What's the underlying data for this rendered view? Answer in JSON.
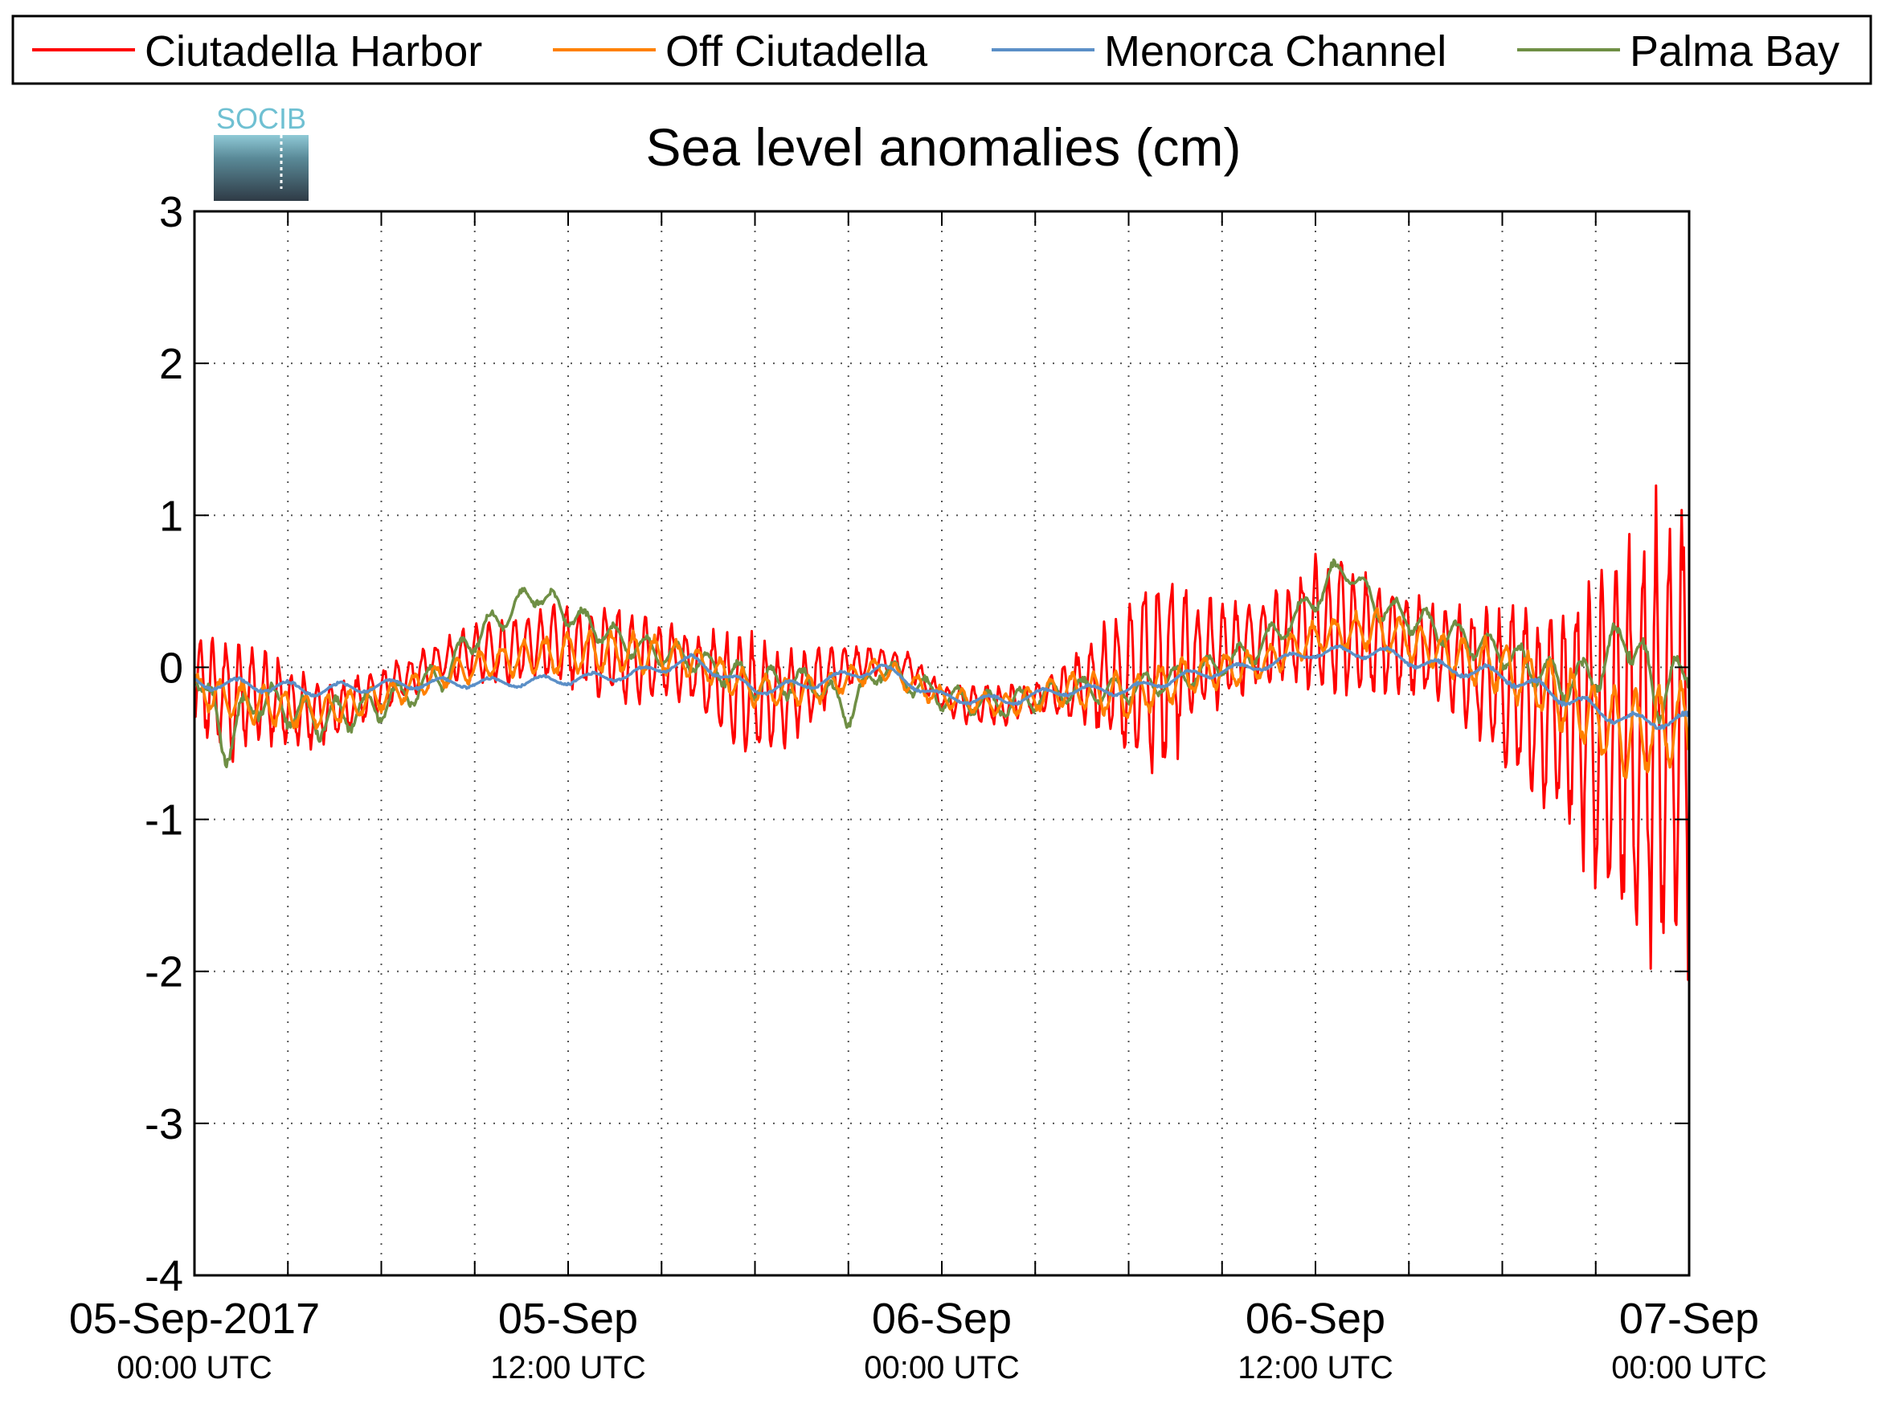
{
  "chart_data": {
    "type": "line",
    "title": "Sea level anomalies (cm)",
    "xlabel": "",
    "ylabel": "",
    "ylim": [
      -4,
      3
    ],
    "y_ticks": [
      "3",
      "2",
      "1",
      "0",
      "-1",
      "-2",
      "-3",
      "-4"
    ],
    "x_range_hours": [
      0,
      48
    ],
    "x_ticks": [
      {
        "hour": 0,
        "date": "05-Sep-2017",
        "time": "00:00 UTC"
      },
      {
        "hour": 12,
        "date": "05-Sep",
        "time": "12:00 UTC"
      },
      {
        "hour": 24,
        "date": "06-Sep",
        "time": "00:00 UTC"
      },
      {
        "hour": 36,
        "date": "06-Sep",
        "time": "12:00 UTC"
      },
      {
        "hour": 48,
        "date": "07-Sep",
        "time": "00:00 UTC"
      }
    ],
    "grid": true,
    "legend_position": "top",
    "series": [
      {
        "name": "Ciutadella Harbor",
        "color": "#ff0000",
        "hours": [
          0,
          1,
          2,
          3,
          4,
          5,
          6,
          7,
          8,
          9,
          10,
          11,
          12,
          13,
          14,
          15,
          16,
          17,
          18,
          19,
          20,
          21,
          22,
          23,
          24,
          25,
          26,
          27,
          28,
          29,
          30,
          31,
          32,
          33,
          34,
          35,
          36,
          37,
          38,
          39,
          40,
          41,
          42,
          43,
          44,
          45,
          46,
          47,
          48
        ],
        "center": [
          -0.1,
          -0.2,
          -0.2,
          -0.25,
          -0.3,
          -0.25,
          -0.15,
          -0.05,
          0.05,
          0.1,
          0.1,
          0.15,
          0.15,
          0.1,
          0.05,
          0.05,
          0.0,
          -0.1,
          -0.2,
          -0.2,
          -0.1,
          0.0,
          0.05,
          0.0,
          -0.2,
          -0.25,
          -0.25,
          -0.2,
          -0.15,
          -0.1,
          -0.05,
          0.0,
          0.05,
          0.1,
          0.15,
          0.2,
          0.25,
          0.25,
          0.2,
          0.15,
          0.1,
          0.0,
          -0.1,
          -0.25,
          -0.3,
          -0.4,
          -0.5,
          -0.45,
          -0.4
        ],
        "amplitude": [
          0.35,
          0.45,
          0.35,
          0.3,
          0.25,
          0.2,
          0.15,
          0.15,
          0.15,
          0.2,
          0.25,
          0.25,
          0.3,
          0.35,
          0.35,
          0.3,
          0.25,
          0.4,
          0.45,
          0.35,
          0.25,
          0.15,
          0.1,
          0.1,
          0.1,
          0.15,
          0.15,
          0.1,
          0.2,
          0.35,
          0.6,
          0.85,
          0.5,
          0.4,
          0.3,
          0.35,
          0.5,
          0.55,
          0.45,
          0.4,
          0.35,
          0.45,
          0.6,
          0.7,
          0.8,
          1.2,
          1.4,
          1.7,
          1.9
        ]
      },
      {
        "name": "Off Ciutadella",
        "color": "#ff8000",
        "hours": [
          0,
          2,
          4,
          6,
          8,
          10,
          12,
          14,
          16,
          18,
          20,
          22,
          24,
          26,
          28,
          30,
          32,
          34,
          36,
          38,
          40,
          42,
          44,
          46,
          48
        ],
        "center": [
          -0.15,
          -0.25,
          -0.3,
          -0.2,
          -0.05,
          0.05,
          0.1,
          0.1,
          0.05,
          -0.15,
          -0.15,
          0.0,
          -0.2,
          -0.25,
          -0.15,
          -0.2,
          -0.05,
          0.0,
          0.2,
          0.25,
          0.1,
          0.0,
          -0.2,
          -0.45,
          -0.35
        ],
        "amplitude": [
          0.12,
          0.15,
          0.12,
          0.1,
          0.1,
          0.12,
          0.15,
          0.15,
          0.12,
          0.12,
          0.1,
          0.08,
          0.08,
          0.08,
          0.12,
          0.18,
          0.15,
          0.12,
          0.12,
          0.15,
          0.15,
          0.2,
          0.25,
          0.3,
          0.3
        ]
      },
      {
        "name": "Menorca Channel",
        "color": "#5b8fc7",
        "hours": [
          0,
          2,
          4,
          6,
          8,
          10,
          12,
          14,
          16,
          18,
          20,
          22,
          24,
          26,
          28,
          30,
          32,
          34,
          36,
          38,
          40,
          42,
          44,
          46,
          48
        ],
        "center": [
          -0.1,
          -0.12,
          -0.15,
          -0.12,
          -0.1,
          -0.1,
          -0.08,
          -0.05,
          0.05,
          -0.15,
          -0.1,
          0.0,
          -0.2,
          -0.22,
          -0.15,
          -0.15,
          -0.05,
          0.0,
          0.1,
          0.1,
          0.0,
          -0.05,
          -0.2,
          -0.35,
          -0.35
        ],
        "amplitude": [
          0.05,
          0.05,
          0.05,
          0.04,
          0.04,
          0.04,
          0.04,
          0.04,
          0.04,
          0.04,
          0.04,
          0.04,
          0.04,
          0.04,
          0.04,
          0.04,
          0.04,
          0.04,
          0.04,
          0.05,
          0.05,
          0.06,
          0.06,
          0.06,
          0.06
        ]
      },
      {
        "name": "Palma Bay",
        "color": "#6f8f45",
        "hours": [
          0,
          1,
          2,
          4,
          6,
          8,
          9,
          10,
          11,
          12,
          13,
          14,
          16,
          18,
          20,
          21,
          22,
          24,
          26,
          28,
          30,
          32,
          34,
          36,
          36.5,
          37,
          38,
          40,
          42,
          44,
          45,
          46,
          47,
          48
        ],
        "center": [
          0.0,
          -0.5,
          -0.2,
          -0.35,
          -0.25,
          -0.05,
          0.2,
          0.35,
          0.5,
          0.35,
          0.25,
          0.15,
          0.05,
          -0.1,
          -0.1,
          -0.3,
          0.0,
          -0.2,
          -0.25,
          -0.15,
          -0.15,
          -0.05,
          0.1,
          0.45,
          0.6,
          0.65,
          0.4,
          0.25,
          0.1,
          -0.1,
          -0.05,
          0.25,
          -0.2,
          0.0
        ],
        "amplitude": [
          0.1,
          0.2,
          0.15,
          0.15,
          0.12,
          0.12,
          0.12,
          0.12,
          0.1,
          0.1,
          0.1,
          0.1,
          0.1,
          0.12,
          0.12,
          0.12,
          0.1,
          0.1,
          0.1,
          0.1,
          0.1,
          0.1,
          0.1,
          0.1,
          0.1,
          0.1,
          0.1,
          0.12,
          0.12,
          0.15,
          0.15,
          0.2,
          0.2,
          0.15
        ]
      }
    ]
  },
  "logo": {
    "text": "SOCIB"
  }
}
